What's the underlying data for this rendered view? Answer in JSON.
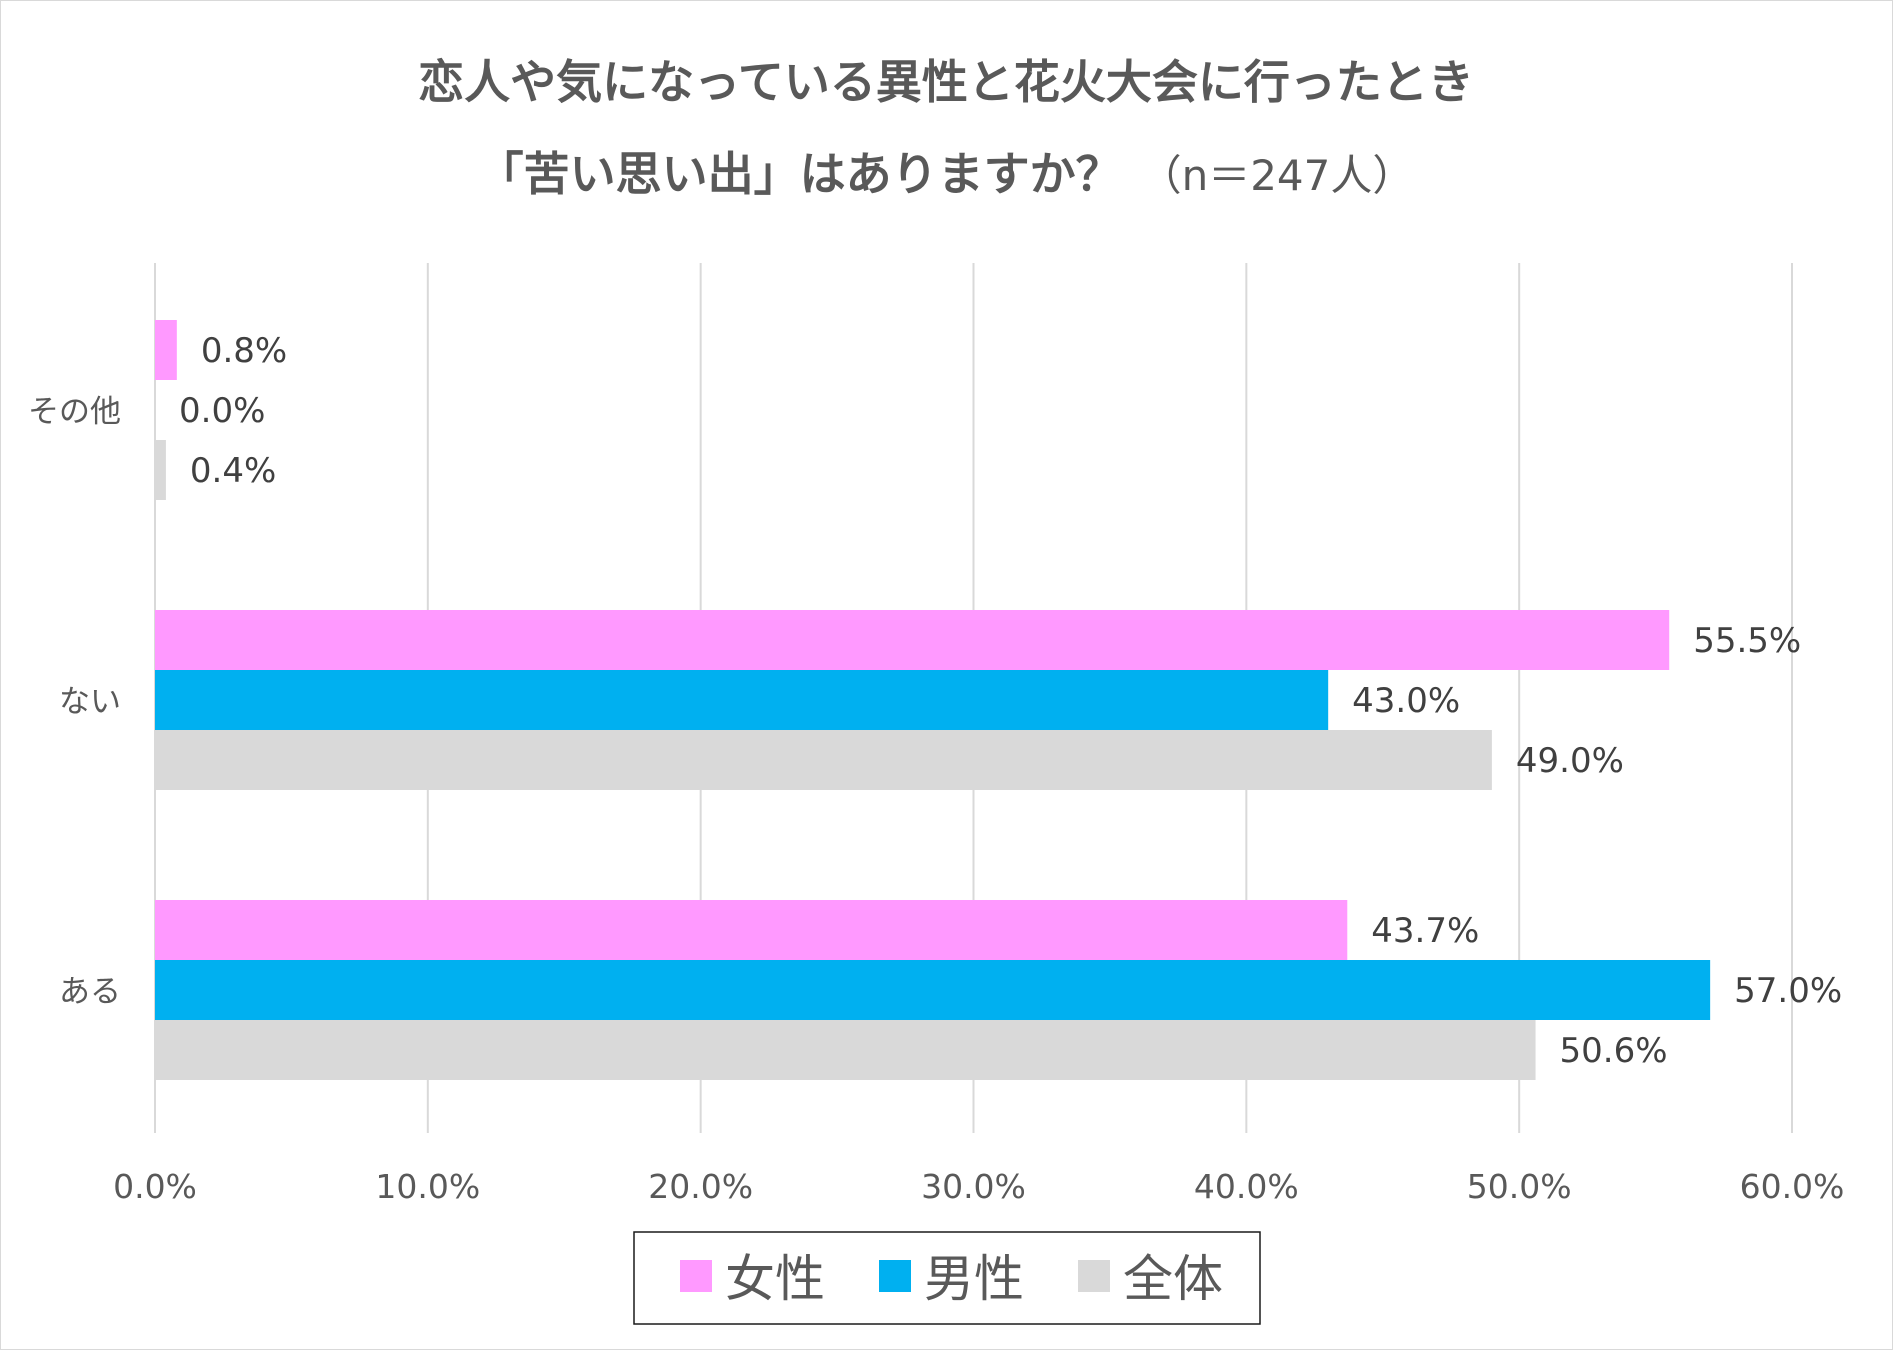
{
  "chart_data": {
    "type": "bar",
    "orientation": "horizontal",
    "title_line1": "恋人や気になっている異性と花火大会に行ったとき",
    "title_line2": "「苦い思い出」はありますか？",
    "title_note": "（n＝247人）",
    "categories": [
      "その他",
      "ない",
      "ある"
    ],
    "series": [
      {
        "name": "女性",
        "color": "#FF99FF",
        "values": [
          0.8,
          55.5,
          43.7
        ],
        "labels": [
          "0.8%",
          "55.5%",
          "43.7%"
        ]
      },
      {
        "name": "男性",
        "color": "#00B0F0",
        "values": [
          0.0,
          43.0,
          57.0
        ],
        "labels": [
          "0.0%",
          "43.0%",
          "57.0%"
        ]
      },
      {
        "name": "全体",
        "color": "#D9D9D9",
        "values": [
          0.4,
          49.0,
          50.6
        ],
        "labels": [
          "0.4%",
          "49.0%",
          "50.6%"
        ]
      }
    ],
    "x_ticks": [
      0,
      10,
      20,
      30,
      40,
      50,
      60
    ],
    "x_tick_labels": [
      "0.0%",
      "10.0%",
      "20.0%",
      "30.0%",
      "40.0%",
      "50.0%",
      "60.0%"
    ],
    "xlim": [
      0,
      60
    ],
    "grid": true,
    "legend_position": "bottom"
  },
  "colors": {
    "grid": "#D9D9D9",
    "text": "#595959"
  }
}
